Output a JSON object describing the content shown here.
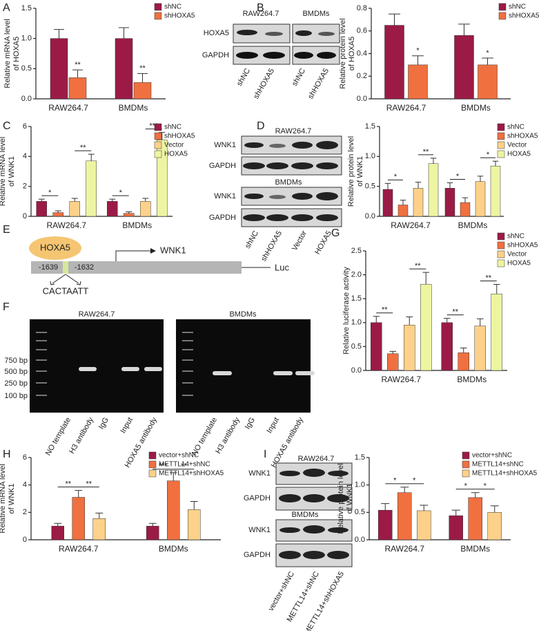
{
  "chart_data": [
    {
      "type": "bar",
      "ylabel": [
        "Relative mRNA level",
        "of HOXA5"
      ],
      "categories": [
        "RAW264.7",
        "BMDMs"
      ],
      "series": [
        {
          "name": "shNC",
          "color": "#9b1b46",
          "values": [
            1.0,
            1.0
          ],
          "errors": [
            0.15,
            0.18
          ]
        },
        {
          "name": "shHOXA5",
          "color": "#f07040",
          "values": [
            0.35,
            0.27
          ],
          "errors": [
            0.13,
            0.15
          ]
        }
      ],
      "ylim": [
        0,
        1.5
      ],
      "yticks": [
        {
          "value": 0,
          "label": "0.0"
        },
        0.5,
        {
          "value": 1,
          "label": "1.0"
        },
        1.5
      ],
      "annotations": [
        {
          "label": "**",
          "category": 0,
          "bars": [
            1
          ]
        },
        {
          "label": "**",
          "category": 1,
          "bars": [
            1
          ]
        }
      ]
    },
    {
      "type": "bar",
      "ylabel": [
        "Relative protein level",
        "of HOXA5"
      ],
      "categories": [
        "RAW264.7",
        "BMDMs"
      ],
      "series": [
        {
          "name": "shNC",
          "color": "#9b1b46",
          "values": [
            0.65,
            0.56
          ],
          "errors": [
            0.1,
            0.1
          ]
        },
        {
          "name": "shHOXA5",
          "color": "#f07040",
          "values": [
            0.3,
            0.3
          ],
          "errors": [
            0.08,
            0.06
          ]
        }
      ],
      "ylim": [
        0,
        0.8
      ],
      "yticks": [
        {
          "value": 0,
          "label": "0.0"
        },
        0.2,
        0.4,
        0.6,
        0.8
      ],
      "annotations": [
        {
          "label": "*",
          "category": 0,
          "bars": [
            1
          ]
        },
        {
          "label": "*",
          "category": 1,
          "bars": [
            1
          ]
        }
      ]
    },
    {
      "type": "bar",
      "ylabel": [
        "Relative mRNA level",
        "of WNK1"
      ],
      "categories": [
        "RAW264.7",
        "BMDMs"
      ],
      "series": [
        {
          "name": "shNC",
          "color": "#9b1b46",
          "values": [
            1.0,
            1.0
          ],
          "errors": [
            0.15,
            0.15
          ]
        },
        {
          "name": "shHOXA5",
          "color": "#f07040",
          "values": [
            0.25,
            0.2
          ],
          "errors": [
            0.12,
            0.1
          ]
        },
        {
          "name": "Vector",
          "color": "#fdd18a",
          "values": [
            1.0,
            1.0
          ],
          "errors": [
            0.2,
            0.2
          ]
        },
        {
          "name": "HOXA5",
          "color": "#eef5a0",
          "values": [
            3.7,
            5.1
          ],
          "errors": [
            0.45,
            0.5
          ]
        }
      ],
      "ylim": [
        0,
        6
      ],
      "yticks": [
        0,
        2,
        4,
        6
      ],
      "annotations": [
        {
          "label": "*",
          "category": 0,
          "bars": [
            0,
            1
          ]
        },
        {
          "label": "**",
          "category": 0,
          "bars": [
            2,
            3
          ]
        },
        {
          "label": "*",
          "category": 1,
          "bars": [
            0,
            1
          ]
        },
        {
          "label": "***",
          "category": 1,
          "bars": [
            2,
            3
          ]
        }
      ]
    },
    {
      "type": "bar",
      "ylabel": [
        "Relative protein level",
        "of WNK1"
      ],
      "categories": [
        "RAW264.7",
        "BMDMs"
      ],
      "series": [
        {
          "name": "shNC",
          "color": "#9b1b46",
          "values": [
            0.45,
            0.47
          ],
          "errors": [
            0.1,
            0.09
          ]
        },
        {
          "name": "shHOXA5",
          "color": "#f07040",
          "values": [
            0.19,
            0.23
          ],
          "errors": [
            0.08,
            0.08
          ]
        },
        {
          "name": "Vector",
          "color": "#fdd18a",
          "values": [
            0.47,
            0.58
          ],
          "errors": [
            0.1,
            0.09
          ]
        },
        {
          "name": "HOXA5",
          "color": "#eef5a0",
          "values": [
            0.88,
            0.84
          ],
          "errors": [
            0.09,
            0.08
          ]
        }
      ],
      "ylim": [
        0,
        1.5
      ],
      "yticks": [
        {
          "value": 0,
          "label": "0.0"
        },
        0.5,
        {
          "value": 1,
          "label": "1.0"
        },
        1.5
      ],
      "annotations": [
        {
          "label": "*",
          "category": 0,
          "bars": [
            0,
            1
          ]
        },
        {
          "label": "**",
          "category": 0,
          "bars": [
            2,
            3
          ]
        },
        {
          "label": "*",
          "category": 1,
          "bars": [
            0,
            1
          ]
        },
        {
          "label": "*",
          "category": 1,
          "bars": [
            2,
            3
          ]
        }
      ]
    },
    {
      "type": "bar",
      "ylabel": [
        "Relative luciferase activity"
      ],
      "categories": [
        "RAW264.7",
        "BMDMs"
      ],
      "series": [
        {
          "name": "shNC",
          "color": "#9b1b46",
          "values": [
            1.0,
            1.0
          ],
          "errors": [
            0.13,
            0.09
          ]
        },
        {
          "name": "shHOXA5",
          "color": "#f07040",
          "values": [
            0.35,
            0.37
          ],
          "errors": [
            0.05,
            0.1
          ]
        },
        {
          "name": "Vector",
          "color": "#fdd18a",
          "values": [
            0.95,
            0.93
          ],
          "errors": [
            0.17,
            0.15
          ]
        },
        {
          "name": "HOXA5",
          "color": "#eef5a0",
          "values": [
            1.8,
            1.6
          ],
          "errors": [
            0.25,
            0.2
          ]
        }
      ],
      "ylim": [
        0,
        2.5
      ],
      "yticks": [
        {
          "value": 0,
          "label": "0.0"
        },
        0.5,
        {
          "value": 1,
          "label": "1.0"
        },
        1.5,
        {
          "value": 2,
          "label": "2.0"
        },
        2.5
      ],
      "annotations": [
        {
          "label": "**",
          "category": 0,
          "bars": [
            0,
            1
          ]
        },
        {
          "label": "**",
          "category": 0,
          "bars": [
            2,
            3
          ]
        },
        {
          "label": "**",
          "category": 1,
          "bars": [
            0,
            1
          ]
        },
        {
          "label": "**",
          "category": 1,
          "bars": [
            2,
            3
          ]
        }
      ]
    },
    {
      "type": "bar",
      "ylabel": [
        "Relative mRNA level",
        "of WNK1"
      ],
      "categories": [
        "RAW264.7",
        "BMDMs"
      ],
      "series": [
        {
          "name": "vector+shNC",
          "color": "#9b1b46",
          "values": [
            1.0,
            1.0
          ],
          "errors": [
            0.2,
            0.2
          ]
        },
        {
          "name": "METTL14+shNC",
          "color": "#f07040",
          "values": [
            3.1,
            4.3
          ],
          "errors": [
            0.5,
            0.6
          ]
        },
        {
          "name": "METTL14+shHOXA5",
          "color": "#fdd18a",
          "values": [
            1.55,
            2.2
          ],
          "errors": [
            0.4,
            0.6
          ]
        }
      ],
      "ylim": [
        0,
        6
      ],
      "yticks": [
        0,
        2,
        4,
        6
      ],
      "annotations": [
        {
          "label": "**",
          "category": 0,
          "bars": [
            0,
            1
          ]
        },
        {
          "label": "**",
          "category": 0,
          "bars": [
            1,
            2
          ]
        },
        {
          "label": "***",
          "category": 1,
          "bars": [
            0,
            1
          ]
        },
        {
          "label": "**",
          "category": 1,
          "bars": [
            1,
            2
          ]
        }
      ]
    },
    {
      "type": "bar",
      "ylabel": [
        "Relative protein level",
        "of WNK1"
      ],
      "categories": [
        "RAW264.7",
        "BMDMs"
      ],
      "series": [
        {
          "name": "vector+shNC",
          "color": "#9b1b46",
          "values": [
            0.54,
            0.44
          ],
          "errors": [
            0.12,
            0.1
          ]
        },
        {
          "name": "METTL14+shNC",
          "color": "#f07040",
          "values": [
            0.86,
            0.77
          ],
          "errors": [
            0.1,
            0.09
          ]
        },
        {
          "name": "METTL14+shHOXA5",
          "color": "#fdd18a",
          "values": [
            0.53,
            0.5
          ],
          "errors": [
            0.1,
            0.12
          ]
        }
      ],
      "ylim": [
        0,
        1.5
      ],
      "yticks": [
        {
          "value": 0,
          "label": "0.0"
        },
        0.5,
        {
          "value": 1,
          "label": "1.0"
        },
        1.5
      ],
      "annotations": [
        {
          "label": "*",
          "category": 0,
          "bars": [
            0,
            1
          ]
        },
        {
          "label": "*",
          "category": 0,
          "bars": [
            1,
            2
          ]
        },
        {
          "label": "*",
          "category": 1,
          "bars": [
            0,
            1
          ]
        },
        {
          "label": "*",
          "category": 1,
          "bars": [
            1,
            2
          ]
        }
      ]
    }
  ],
  "panel_labels": [
    "A",
    "B",
    "C",
    "D",
    "E",
    "F",
    "G",
    "H",
    "I"
  ],
  "blot_B": {
    "groups": [
      "RAW264.7",
      "BMDMs"
    ],
    "rows": [
      "HOXA5",
      "GAPDH"
    ],
    "lanes": [
      "shNC",
      "shHOXA5",
      "shNC",
      "shHOXA5"
    ]
  },
  "blot_D": {
    "groups": [
      "RAW264.7",
      "BMDMs"
    ],
    "rows": [
      "WNK1",
      "GAPDH",
      "WNK1",
      "GAPDH"
    ],
    "lanes": [
      "shNC",
      "shHOXA5",
      "Vector",
      "HOXA5"
    ]
  },
  "diagram_E": {
    "factor": "HOXA5",
    "gene": "WNK1",
    "start": "-1639",
    "end": "-1632",
    "reporter": "Luc",
    "motif": "CACTAATT"
  },
  "gel_F": {
    "titles": [
      "RAW264.7",
      "BMDMs"
    ],
    "ladder": [
      "750 bp",
      "500 bp",
      "250 bp",
      "100 bp"
    ],
    "lanes": [
      "NO template",
      "H3 antibody",
      "IgG",
      "Input",
      "HOXA5 antibody"
    ]
  },
  "blot_I": {
    "groups": [
      "RAW264.7",
      "BMDMs"
    ],
    "rows": [
      "WNK1",
      "GAPDH",
      "WNK1",
      "GAPDH"
    ],
    "lanes": [
      "vector+shNC",
      "METTL14+shNC",
      "METTL14+shHOXA5"
    ]
  }
}
